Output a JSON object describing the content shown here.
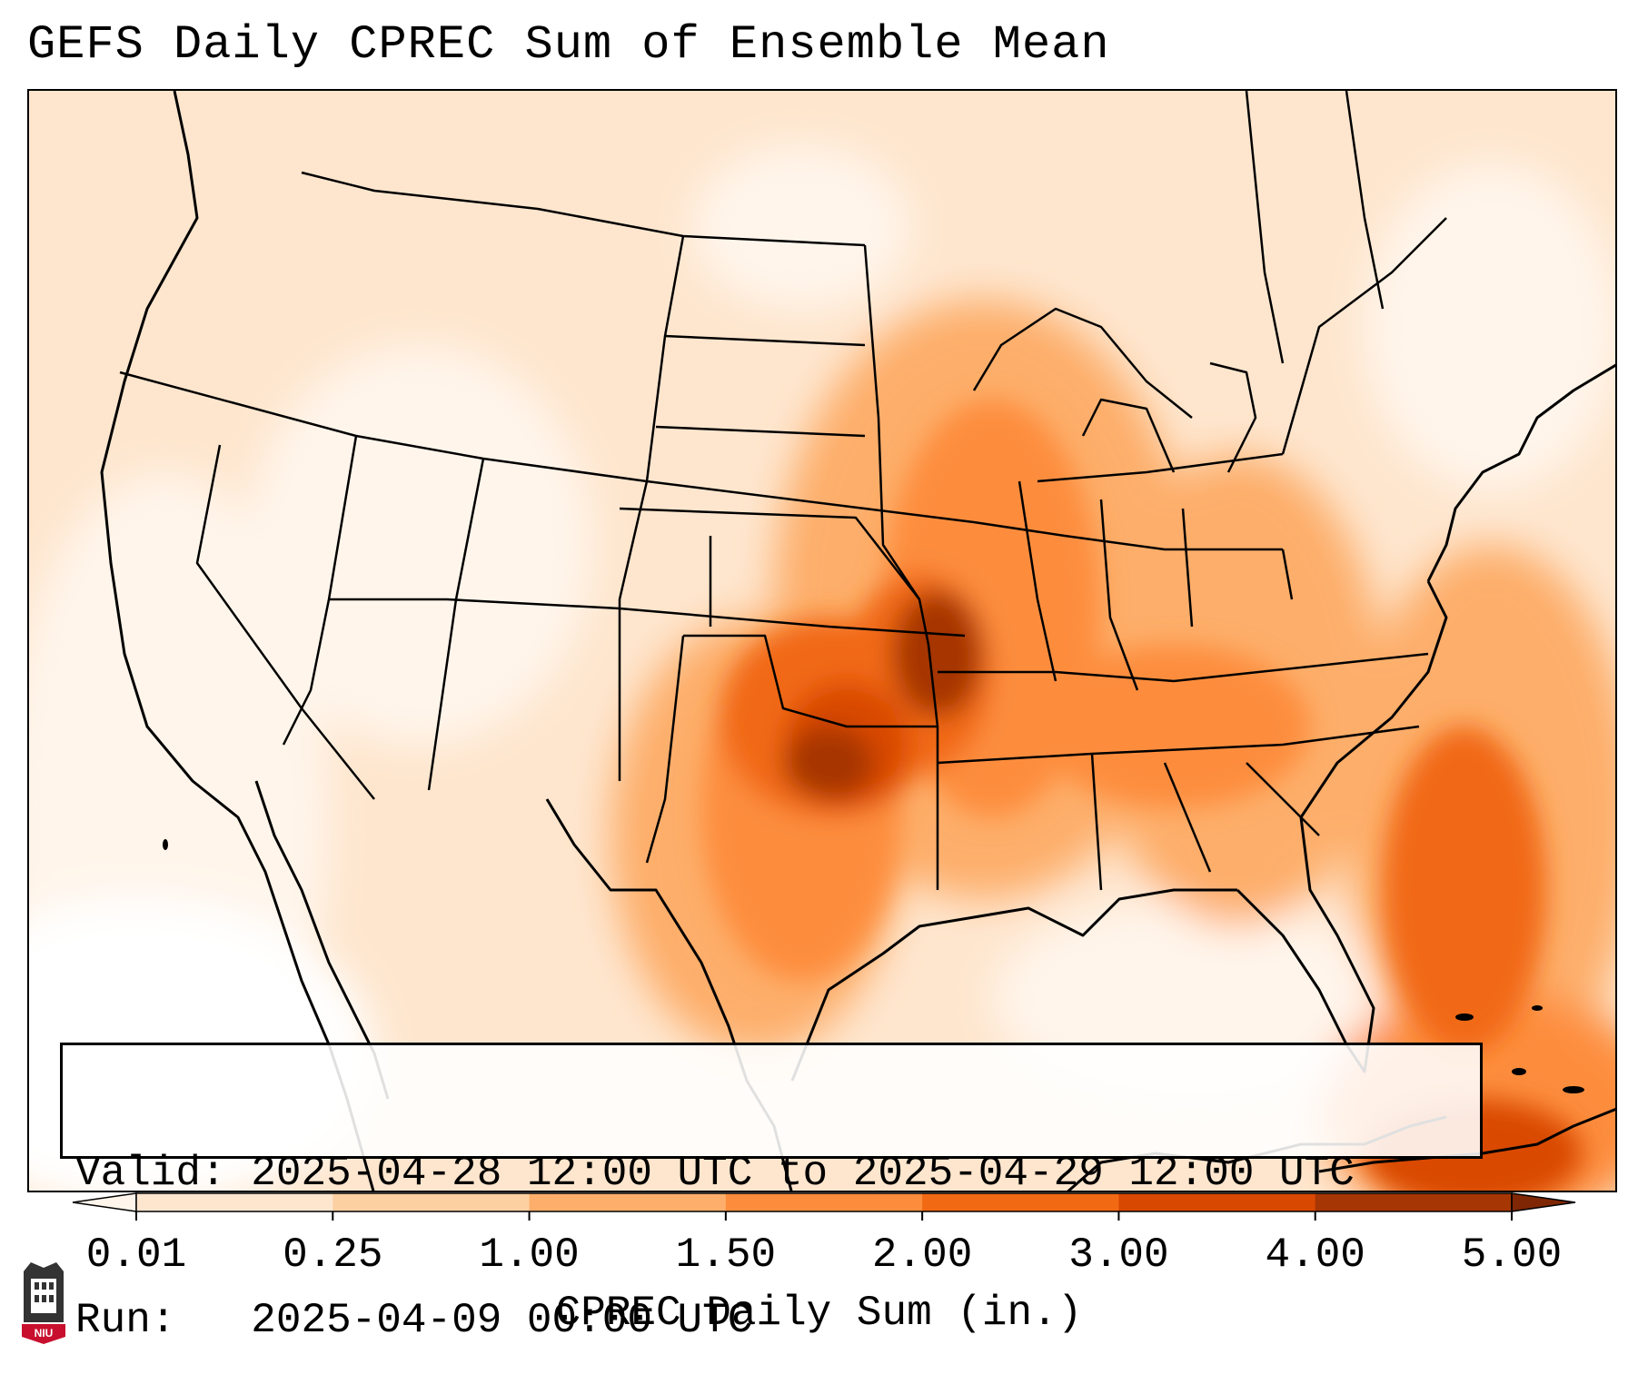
{
  "title": "GEFS Daily CPREC Sum of Ensemble Mean",
  "info": {
    "valid_label": "Valid:",
    "valid_value": "2025-04-28 12:00 UTC to 2025-04-29 12:00 UTC",
    "run_label": "Run:",
    "run_value": "2025-04-09 00:00 UTC"
  },
  "colorbar": {
    "title": "CPREC Daily Sum (in.)",
    "ticks": [
      "0.01",
      "0.25",
      "1.00",
      "1.50",
      "2.00",
      "3.00",
      "4.00",
      "5.00"
    ],
    "colors": [
      "#fff5eb",
      "#fee6ce",
      "#fdd0a2",
      "#fdae6b",
      "#fd8d3c",
      "#f16913",
      "#d94801",
      "#a63603",
      "#7f2704"
    ],
    "extend": "both"
  },
  "logo": {
    "text": "NIU",
    "icon": "university-tower-icon"
  }
}
